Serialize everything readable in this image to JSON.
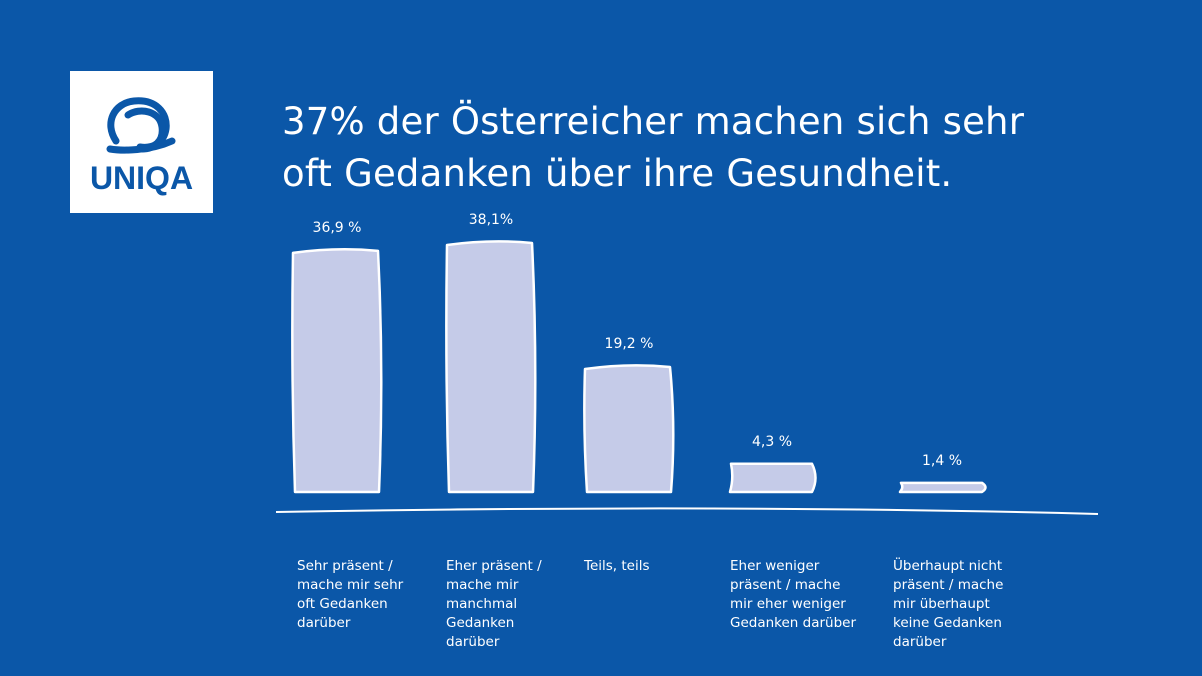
{
  "brand": {
    "logo_text": "UNIQA",
    "colors": {
      "background": "#0b57a8",
      "bar_fill": "#c5cbe8",
      "bar_stroke": "#ffffff",
      "text": "#ffffff"
    }
  },
  "chart_data": {
    "type": "bar",
    "title": "37% der Österreicher machen sich sehr oft Gedanken über ihre Gesundheit.",
    "title_lines": [
      "37% der Österreicher machen sich sehr",
      "oft Gedanken über ihre Gesundheit."
    ],
    "categories": [
      "Sehr präsent / mache mir sehr oft Gedanken darüber",
      "Eher präsent / mache mir manchmal Gedanken darüber",
      "Teils, teils",
      "Eher weniger präsent / mache mir eher weniger Gedanken darüber",
      "Überhaupt nicht präsent / mache mir überhaupt keine Gedanken darüber"
    ],
    "category_lines": [
      "Sehr präsent /\nmache mir sehr\noft Gedanken\ndarüber",
      "Eher präsent /\nmache mir\nmanchmal\nGedanken\ndarüber",
      "Teils, teils",
      "Eher weniger\npräsent / mache\nmir eher weniger\nGedanken darüber",
      "Überhaupt nicht\npräsent / mache\nmir überhaupt\nkeine Gedanken\ndarüber"
    ],
    "values": [
      36.9,
      38.1,
      19.2,
      4.3,
      1.4
    ],
    "value_labels": [
      "36,9 %",
      "38,1%",
      "19,2 %",
      "4,3 %",
      "1,4 %"
    ],
    "unit": "%",
    "ylim": [
      0,
      38.1
    ],
    "xlabel": "",
    "ylabel": "",
    "grid": false,
    "legend": "none"
  }
}
